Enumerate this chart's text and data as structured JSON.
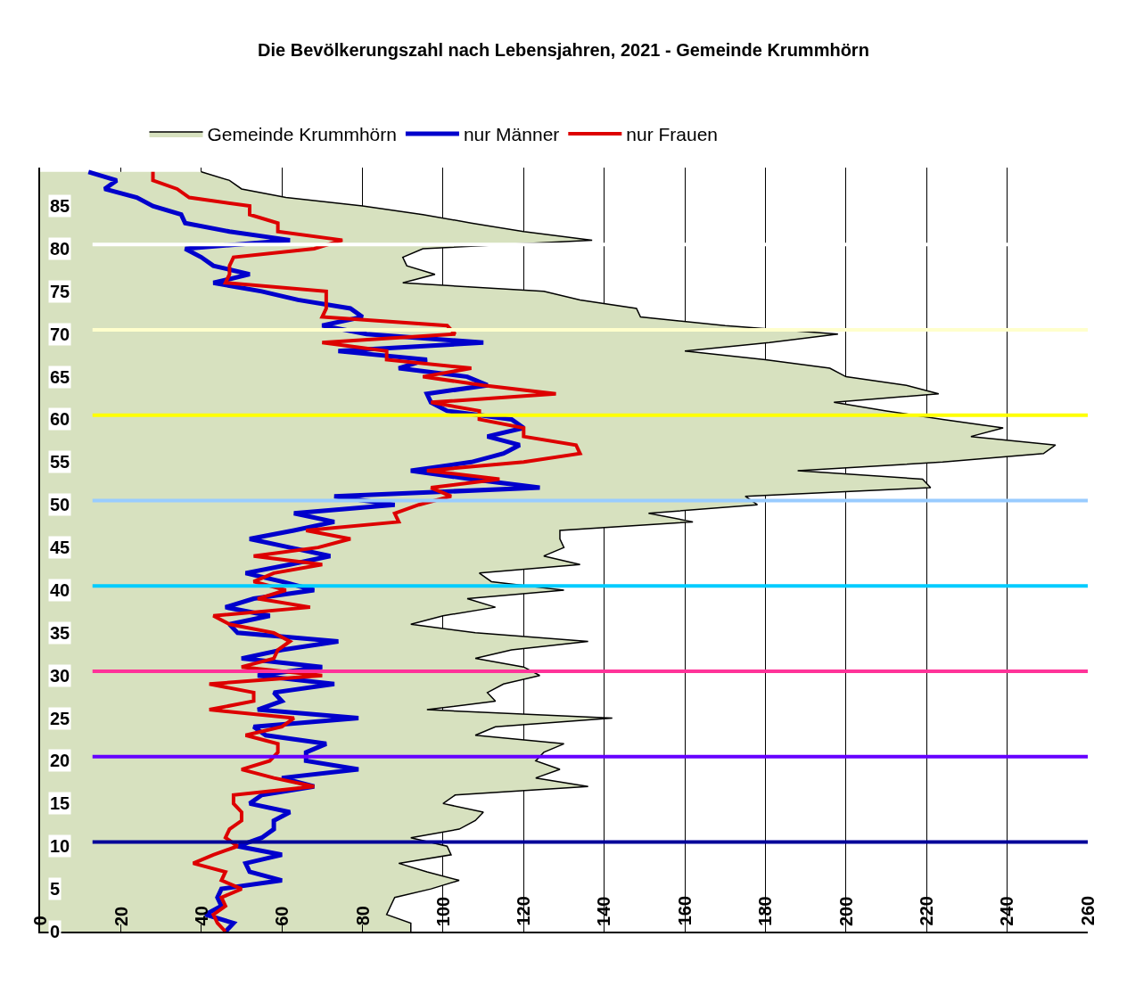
{
  "chart_data": {
    "type": "line",
    "orientation": "horizontal",
    "title": "Die Bevölkerungszahl nach Lebensjahren, 2021 - Gemeinde Krummhörn",
    "x": [
      0,
      1,
      2,
      3,
      4,
      5,
      6,
      7,
      8,
      9,
      10,
      11,
      12,
      13,
      14,
      15,
      16,
      17,
      18,
      19,
      20,
      21,
      22,
      23,
      24,
      25,
      26,
      27,
      28,
      29,
      30,
      31,
      32,
      33,
      34,
      35,
      36,
      37,
      38,
      39,
      40,
      41,
      42,
      43,
      44,
      45,
      46,
      47,
      48,
      49,
      50,
      51,
      52,
      53,
      54,
      55,
      56,
      57,
      58,
      59,
      60,
      61,
      62,
      63,
      64,
      65,
      66,
      67,
      68,
      69,
      70,
      71,
      72,
      73,
      74,
      75,
      76,
      77,
      78,
      79,
      80,
      81,
      82,
      83,
      84,
      85,
      86,
      87,
      88,
      89
    ],
    "series": [
      {
        "name": "Gemeinde Krummhörn",
        "type": "area",
        "color": "#d7e1bf",
        "values": [
          92,
          92,
          86,
          87,
          88,
          97,
          104,
          96,
          89,
          102,
          101,
          92,
          104,
          108,
          110,
          100,
          103,
          136,
          123,
          129,
          123,
          125,
          130,
          108,
          113,
          142,
          96,
          113,
          111,
          115,
          124,
          120,
          108,
          117,
          136,
          108,
          92,
          100,
          113,
          106,
          130,
          112,
          109,
          134,
          125,
          130,
          129,
          129,
          162,
          151,
          178,
          175,
          221,
          219,
          188,
          224,
          249,
          252,
          231,
          239,
          224,
          210,
          197,
          223,
          215,
          200,
          196,
          180,
          160,
          181,
          198,
          170,
          149,
          148,
          134,
          125,
          90,
          98,
          91,
          90,
          95,
          137,
          120,
          107,
          95,
          80,
          61,
          50,
          47,
          40
        ]
      },
      {
        "name": "nur Männer",
        "color": "#0000cc",
        "values": [
          46,
          48,
          41,
          45,
          44,
          45,
          60,
          52,
          51,
          60,
          49,
          55,
          58,
          58,
          62,
          52,
          55,
          68,
          60,
          79,
          66,
          66,
          71,
          56,
          53,
          79,
          54,
          60,
          58,
          73,
          54,
          70,
          50,
          60,
          74,
          49,
          47,
          57,
          46,
          53,
          68,
          60,
          51,
          62,
          72,
          62,
          52,
          63,
          73,
          63,
          88,
          73,
          124,
          107,
          92,
          107,
          115,
          119,
          111,
          120,
          117,
          101,
          97,
          96,
          111,
          106,
          89,
          96,
          74,
          110,
          81,
          70,
          80,
          77,
          64,
          55,
          43,
          52,
          43,
          40,
          36,
          62,
          47,
          36,
          35,
          28,
          24,
          16,
          19,
          12
        ]
      },
      {
        "name": "nur Frauen",
        "color": "#dd0000",
        "values": [
          46,
          44,
          43,
          46,
          45,
          50,
          45,
          46,
          38,
          43,
          49,
          46,
          47,
          50,
          50,
          48,
          48,
          68,
          58,
          50,
          57,
          59,
          59,
          51,
          60,
          63,
          42,
          53,
          53,
          42,
          70,
          50,
          58,
          59,
          62,
          58,
          47,
          43,
          67,
          54,
          61,
          53,
          58,
          70,
          53,
          69,
          77,
          66,
          89,
          88,
          94,
          102,
          97,
          114,
          96,
          120,
          134,
          133,
          120,
          120,
          109,
          109,
          97,
          128,
          110,
          95,
          107,
          86,
          86,
          70,
          103,
          101,
          70,
          71,
          71,
          71,
          46,
          47,
          47,
          48,
          68,
          75,
          59,
          59,
          52,
          52,
          37,
          34,
          28,
          28
        ]
      }
    ],
    "xlim": [
      0,
      260
    ],
    "xticks": [
      0,
      20,
      40,
      60,
      80,
      100,
      120,
      140,
      160,
      180,
      200,
      220,
      240,
      260
    ],
    "ylim": [
      0,
      89.5
    ],
    "yticks": [
      0,
      5,
      10,
      15,
      20,
      25,
      30,
      35,
      40,
      45,
      50,
      55,
      60,
      65,
      70,
      75,
      80,
      85
    ],
    "ref_lines": [
      {
        "axis": "y",
        "value": 10.5,
        "color": "#000099"
      },
      {
        "axis": "y",
        "value": 20.5,
        "color": "#6600ff"
      },
      {
        "axis": "y",
        "value": 30.5,
        "color": "#ff3399"
      },
      {
        "axis": "y",
        "value": 40.5,
        "color": "#00ccff"
      },
      {
        "axis": "y",
        "value": 50.5,
        "color": "#99ccff"
      },
      {
        "axis": "y",
        "value": 60.5,
        "color": "#ffff00"
      },
      {
        "axis": "y",
        "value": 70.5,
        "color": "#ffffcc"
      },
      {
        "axis": "y",
        "value": 80.5,
        "color": "#ffffff"
      }
    ],
    "grid": "x",
    "legend": "top",
    "marker": "none",
    "line_style": "solid"
  }
}
